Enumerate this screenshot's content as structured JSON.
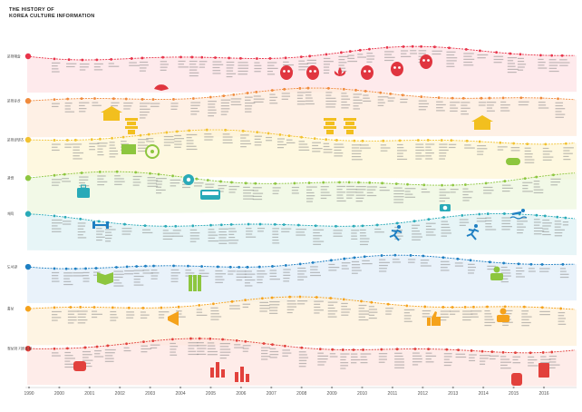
{
  "title": {
    "line1": "THE HISTORY OF",
    "line2": "KOREA CULTURE INFORMATION"
  },
  "years": [
    "1990",
    "2000",
    "2001",
    "2002",
    "2003",
    "2004",
    "2005",
    "2006",
    "2007",
    "2008",
    "2009",
    "2010",
    "2011",
    "2012",
    "2013",
    "2014",
    "2015",
    "2016"
  ],
  "tracks": [
    {
      "label": "문화예술",
      "color": "#e8344a",
      "band": "#fde3e6"
    },
    {
      "label": "문화유산",
      "color": "#f08a3c",
      "band": "#fdebdc"
    },
    {
      "label": "문화콘텐츠",
      "color": "#f2c230",
      "band": "#fdf6d6"
    },
    {
      "label": "관광",
      "color": "#8dc63f",
      "band": "#eef7df"
    },
    {
      "label": "체육",
      "color": "#29aab8",
      "band": "#dff2f4"
    },
    {
      "label": "도서관",
      "color": "#1e7fc2",
      "band": "#e2eef8"
    },
    {
      "label": "홍보",
      "color": "#f5a21b",
      "band": "#fef0da"
    },
    {
      "label": "정보화 기반조성",
      "color": "#e2413c",
      "band": "#fde5e2"
    }
  ],
  "icons": [
    "mask-icon",
    "fan-icon",
    "pagoda-icon",
    "palace-icon",
    "camera-icon",
    "suitcase-icon",
    "bus-icon",
    "dumbbell-icon",
    "runner-icon",
    "swimmer-icon",
    "book-icon",
    "books-icon",
    "megaphone-icon",
    "thumbs-up-icon",
    "person-icon",
    "chat-icon",
    "bar-chart-icon",
    "database-icon",
    "document-icon",
    "film-icon",
    "gamepad-icon",
    "map-pin-icon",
    "monitor-icon",
    "lotus-icon"
  ]
}
